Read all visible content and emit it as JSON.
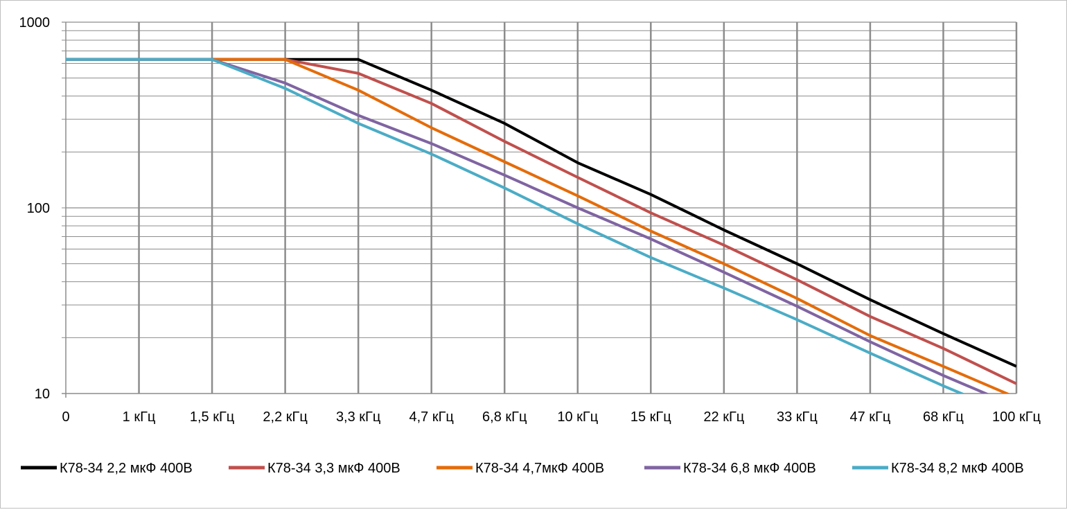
{
  "chart_data": {
    "type": "line",
    "title": "",
    "xlabel": "",
    "ylabel": "",
    "y_scale": "log",
    "ylim": [
      10,
      1000
    ],
    "y_ticks": [
      "1000",
      "100",
      "10"
    ],
    "categories": [
      "0",
      "1 кГц",
      "1,5 кГц",
      "2,2 кГц",
      "3,3 кГц",
      "4,7 кГц",
      "6,8 кГц",
      "10 кГц",
      "15 кГц",
      "22 кГц",
      "33 кГц",
      "47 кГц",
      "68 кГц",
      "100 кГц"
    ],
    "grid": true,
    "legend_position": "bottom",
    "series": [
      {
        "name": "К78-34 2,2 мкФ 400В",
        "color": "#000000",
        "values": [
          630,
          630,
          630,
          630,
          630,
          430,
          285,
          175,
          118,
          76,
          50,
          32,
          21,
          14
        ]
      },
      {
        "name": "К78-34 3,3 мкФ 400В",
        "color": "#c0504d",
        "values": [
          630,
          630,
          630,
          630,
          530,
          365,
          228,
          146,
          94,
          63,
          41,
          26,
          17.5,
          11.3
        ]
      },
      {
        "name": "К78-34  4,7мкФ 400В",
        "color": "#e46c0a",
        "values": [
          630,
          630,
          630,
          630,
          430,
          270,
          177,
          116,
          75,
          50,
          32.5,
          20.5,
          14,
          9.5
        ]
      },
      {
        "name": "К78-34 6,8 мкФ 400В",
        "color": "#8064a2",
        "values": [
          630,
          630,
          630,
          470,
          315,
          222,
          150,
          100,
          68,
          45,
          29.5,
          19,
          12.5,
          8.5
        ]
      },
      {
        "name": "К78-34 8,2 мкФ 400В",
        "color": "#4bacc6",
        "values": [
          630,
          630,
          630,
          440,
          285,
          195,
          128,
          82,
          54,
          37,
          25,
          16.5,
          11,
          7.5
        ]
      }
    ]
  }
}
